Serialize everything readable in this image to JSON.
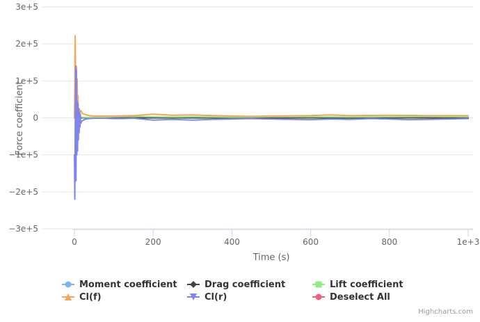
{
  "chart_data": {
    "type": "line",
    "title": "",
    "xlabel": "Time (s)",
    "ylabel": "Force coefficient",
    "xlim": [
      0,
      1000
    ],
    "ylim": [
      -300000,
      300000
    ],
    "x_ticks": [
      0,
      200,
      400,
      600,
      800,
      1000
    ],
    "x_tick_labels": [
      "0",
      "200",
      "400",
      "600",
      "800",
      "1e+3"
    ],
    "y_ticks": [
      300000,
      200000,
      100000,
      0,
      -100000,
      -200000,
      -300000
    ],
    "y_tick_labels": [
      "3e+5",
      "2e+5",
      "1e+5",
      "0",
      "−1e+5",
      "−2e+5",
      "−3e+5"
    ],
    "grid": true,
    "legend_position": "bottom",
    "series": [
      {
        "name": "Moment coefficient",
        "color": "#7cb5ec",
        "marker": "circle",
        "x": [
          0,
          2,
          4,
          6,
          8,
          10,
          14,
          20,
          30,
          50,
          100,
          200,
          300,
          400,
          500,
          600,
          700,
          800,
          900,
          1000
        ],
        "values": [
          0,
          2000,
          -2000,
          1500,
          -1000,
          800,
          500,
          300,
          200,
          100,
          100,
          200,
          100,
          100,
          100,
          200,
          100,
          100,
          100,
          100
        ]
      },
      {
        "name": "Drag coefficient",
        "color": "#434348",
        "marker": "diamond",
        "x": [
          0,
          2,
          4,
          6,
          8,
          10,
          14,
          20,
          30,
          50,
          100,
          200,
          300,
          400,
          500,
          600,
          700,
          800,
          900,
          1000
        ],
        "values": [
          0,
          3000,
          -2000,
          2000,
          -1000,
          1000,
          800,
          500,
          300,
          200,
          200,
          300,
          200,
          200,
          200,
          300,
          200,
          200,
          200,
          200
        ]
      },
      {
        "name": "Lift coefficient",
        "color": "#90ed7d",
        "marker": "square",
        "x": [
          0,
          2,
          4,
          6,
          8,
          10,
          14,
          20,
          30,
          50,
          100,
          150,
          200,
          250,
          300,
          350,
          400,
          500,
          600,
          700,
          800,
          900,
          1000
        ],
        "values": [
          0,
          20000,
          -15000,
          12000,
          -8000,
          6000,
          3000,
          2000,
          1500,
          2000,
          3000,
          4000,
          3000,
          2500,
          3000,
          2500,
          2000,
          3000,
          3000,
          2500,
          3000,
          3500,
          3000
        ]
      },
      {
        "name": "Cl(f)",
        "color": "#f7a35c",
        "marker": "triangle",
        "x": [
          0,
          1,
          2,
          3,
          4,
          5,
          6,
          7,
          8,
          9,
          10,
          12,
          14,
          16,
          20,
          25,
          30,
          40,
          50,
          75,
          100,
          150,
          200,
          250,
          300,
          350,
          400,
          450,
          500,
          600,
          650,
          700,
          800,
          900,
          1000
        ],
        "values": [
          0,
          80000,
          222000,
          120000,
          -20000,
          140000,
          -60000,
          105000,
          20000,
          60000,
          10000,
          25000,
          15000,
          20000,
          12000,
          10000,
          8000,
          6000,
          5000,
          5000,
          5000,
          6000,
          10000,
          7000,
          8000,
          6000,
          5000,
          4000,
          5000,
          6000,
          8000,
          6000,
          7000,
          6000,
          6000
        ]
      },
      {
        "name": "Cl(r)",
        "color": "#8085e9",
        "marker": "triangle-down",
        "x": [
          0,
          1,
          2,
          3,
          4,
          5,
          6,
          7,
          8,
          9,
          10,
          11,
          12,
          13,
          14,
          15,
          16,
          18,
          20,
          25,
          30,
          40,
          50,
          75,
          100,
          125,
          150,
          200,
          250,
          300,
          350,
          400,
          450,
          500,
          550,
          600,
          650,
          700,
          750,
          800,
          850,
          900,
          950,
          1000
        ],
        "values": [
          -100000,
          -220000,
          -40000,
          140000,
          -170000,
          130000,
          -100000,
          45000,
          -90000,
          40000,
          -60000,
          25000,
          -40000,
          15000,
          -25000,
          10000,
          -15000,
          -10000,
          -8000,
          -5000,
          -3000,
          -2000,
          -1000,
          -1000,
          -2000,
          -2000,
          -1000,
          -6000,
          -4000,
          -6000,
          -4000,
          -3000,
          -2000,
          -3000,
          -4000,
          -5000,
          -3000,
          -4000,
          -2000,
          -3000,
          -5000,
          -4000,
          -3000,
          -2000
        ]
      }
    ]
  },
  "legend": {
    "items": [
      {
        "name": "Moment coefficient",
        "color": "#7cb5ec",
        "marker": "circle"
      },
      {
        "name": "Drag coefficient",
        "color": "#434348",
        "marker": "diamond"
      },
      {
        "name": "Lift coefficient",
        "color": "#90ed7d",
        "marker": "square"
      },
      {
        "name": "Cl(f)",
        "color": "#f7a35c",
        "marker": "triangle"
      },
      {
        "name": "Cl(r)",
        "color": "#8085e9",
        "marker": "triangle-down"
      },
      {
        "name": "Deselect All",
        "color": "#f15c80",
        "marker": "circle"
      }
    ]
  },
  "credits": {
    "text": "Highcharts.com"
  }
}
